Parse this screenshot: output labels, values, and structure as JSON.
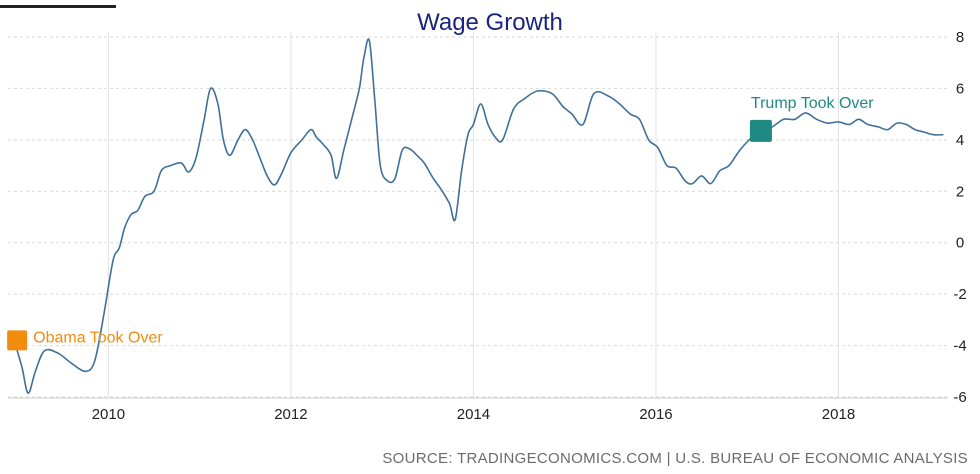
{
  "chart_data": {
    "type": "line",
    "title": "Wage Growth",
    "xlabel": "",
    "ylabel": "",
    "x_ticks": [
      2010,
      2012,
      2014,
      2016,
      2018
    ],
    "y_ticks": [
      8,
      6,
      4,
      2,
      0,
      -2,
      -4,
      -6
    ],
    "xlim": [
      2008.9,
      2019.2
    ],
    "ylim": [
      -6,
      8
    ],
    "grid": true,
    "y_axis_side": "right",
    "series": [
      {
        "color": "#3f6f9a",
        "points": [
          [
            2008.95,
            -3.6
          ],
          [
            2009.05,
            -4.8
          ],
          [
            2009.12,
            -5.85
          ],
          [
            2009.2,
            -5.0
          ],
          [
            2009.3,
            -4.2
          ],
          [
            2009.45,
            -4.3
          ],
          [
            2009.6,
            -4.7
          ],
          [
            2009.75,
            -5.0
          ],
          [
            2009.85,
            -4.6
          ],
          [
            2009.95,
            -2.8
          ],
          [
            2010.05,
            -0.7
          ],
          [
            2010.12,
            -0.2
          ],
          [
            2010.18,
            0.6
          ],
          [
            2010.25,
            1.1
          ],
          [
            2010.32,
            1.25
          ],
          [
            2010.4,
            1.8
          ],
          [
            2010.5,
            2.0
          ],
          [
            2010.58,
            2.8
          ],
          [
            2010.68,
            3.0
          ],
          [
            2010.8,
            3.1
          ],
          [
            2010.88,
            2.75
          ],
          [
            2010.96,
            3.3
          ],
          [
            2011.05,
            4.8
          ],
          [
            2011.12,
            6.0
          ],
          [
            2011.2,
            5.4
          ],
          [
            2011.26,
            4.0
          ],
          [
            2011.33,
            3.4
          ],
          [
            2011.42,
            4.0
          ],
          [
            2011.5,
            4.4
          ],
          [
            2011.58,
            4.0
          ],
          [
            2011.66,
            3.3
          ],
          [
            2011.74,
            2.6
          ],
          [
            2011.82,
            2.25
          ],
          [
            2011.9,
            2.7
          ],
          [
            2012.0,
            3.5
          ],
          [
            2012.12,
            4.0
          ],
          [
            2012.22,
            4.4
          ],
          [
            2012.28,
            4.1
          ],
          [
            2012.36,
            3.8
          ],
          [
            2012.44,
            3.4
          ],
          [
            2012.5,
            2.5
          ],
          [
            2012.58,
            3.6
          ],
          [
            2012.68,
            5.0
          ],
          [
            2012.75,
            6.0
          ],
          [
            2012.8,
            7.2
          ],
          [
            2012.86,
            7.85
          ],
          [
            2012.92,
            5.5
          ],
          [
            2012.98,
            3.0
          ],
          [
            2013.06,
            2.4
          ],
          [
            2013.14,
            2.5
          ],
          [
            2013.22,
            3.6
          ],
          [
            2013.3,
            3.65
          ],
          [
            2013.38,
            3.4
          ],
          [
            2013.46,
            3.1
          ],
          [
            2013.56,
            2.5
          ],
          [
            2013.66,
            2.0
          ],
          [
            2013.74,
            1.5
          ],
          [
            2013.8,
            0.9
          ],
          [
            2013.87,
            2.8
          ],
          [
            2013.94,
            4.2
          ],
          [
            2014.0,
            4.6
          ],
          [
            2014.08,
            5.4
          ],
          [
            2014.16,
            4.6
          ],
          [
            2014.24,
            4.1
          ],
          [
            2014.32,
            4.0
          ],
          [
            2014.44,
            5.2
          ],
          [
            2014.56,
            5.6
          ],
          [
            2014.7,
            5.9
          ],
          [
            2014.86,
            5.8
          ],
          [
            2014.98,
            5.3
          ],
          [
            2015.08,
            5.0
          ],
          [
            2015.2,
            4.6
          ],
          [
            2015.32,
            5.8
          ],
          [
            2015.48,
            5.7
          ],
          [
            2015.6,
            5.4
          ],
          [
            2015.72,
            5.0
          ],
          [
            2015.82,
            4.8
          ],
          [
            2015.92,
            4.0
          ],
          [
            2016.02,
            3.7
          ],
          [
            2016.12,
            3.0
          ],
          [
            2016.22,
            2.9
          ],
          [
            2016.32,
            2.4
          ],
          [
            2016.4,
            2.3
          ],
          [
            2016.5,
            2.6
          ],
          [
            2016.6,
            2.3
          ],
          [
            2016.7,
            2.8
          ],
          [
            2016.8,
            3.0
          ],
          [
            2016.92,
            3.6
          ],
          [
            2017.05,
            4.1
          ],
          [
            2017.15,
            4.35
          ],
          [
            2017.27,
            4.5
          ],
          [
            2017.4,
            4.8
          ],
          [
            2017.52,
            4.8
          ],
          [
            2017.64,
            5.05
          ],
          [
            2017.76,
            4.8
          ],
          [
            2017.88,
            4.65
          ],
          [
            2018.0,
            4.7
          ],
          [
            2018.12,
            4.6
          ],
          [
            2018.22,
            4.8
          ],
          [
            2018.32,
            4.6
          ],
          [
            2018.44,
            4.5
          ],
          [
            2018.54,
            4.4
          ],
          [
            2018.64,
            4.65
          ],
          [
            2018.74,
            4.6
          ],
          [
            2018.84,
            4.4
          ],
          [
            2018.94,
            4.3
          ],
          [
            2019.04,
            4.2
          ],
          [
            2019.15,
            4.2
          ]
        ]
      }
    ],
    "annotations": [
      {
        "text": "Obama Took Over",
        "x": 2009.0,
        "y": -3.8,
        "color": "#f28c0f"
      },
      {
        "text": "Trump Took Over",
        "x": 2017.15,
        "y": 4.35,
        "color": "#1f8a84"
      }
    ],
    "source": "SOURCE: TRADINGECONOMICS.COM | U.S. BUREAU OF ECONOMIC ANALYSIS"
  }
}
